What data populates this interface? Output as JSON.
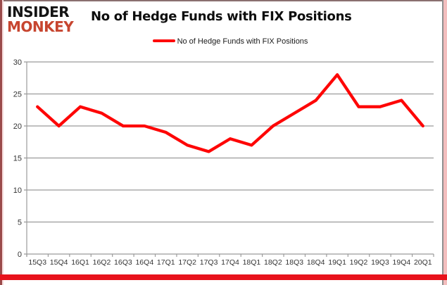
{
  "logo": {
    "line1": "INSIDER",
    "line2": "MONKEY"
  },
  "header": {
    "title": "No of Hedge Funds with FIX Positions"
  },
  "legend": {
    "label": "No of Hedge Funds with FIX Positions"
  },
  "chart_data": {
    "type": "line",
    "title": "No of Hedge Funds with FIX Positions",
    "categories": [
      "15Q3",
      "15Q4",
      "16Q1",
      "16Q2",
      "16Q3",
      "16Q4",
      "17Q1",
      "17Q2",
      "17Q3",
      "17Q4",
      "18Q1",
      "18Q2",
      "18Q3",
      "18Q4",
      "19Q1",
      "19Q2",
      "19Q3",
      "19Q4",
      "20Q1"
    ],
    "series": [
      {
        "name": "No of Hedge Funds with FIX Positions",
        "color": "#fe0606",
        "values": [
          23,
          20,
          23,
          22,
          20,
          20,
          19,
          17,
          16,
          18,
          17,
          20,
          22,
          24,
          28,
          23,
          23,
          24,
          20
        ]
      }
    ],
    "xlabel": "",
    "ylabel": "",
    "ylim": [
      0,
      30
    ],
    "ytick_interval": 5,
    "grid": true,
    "legend_position": "top"
  },
  "colors": {
    "line_red": "#fe0606",
    "grid_gray": "#9b9b9b",
    "axis_text": "#333333",
    "bottom_bar_red": "#e8121b",
    "logo_accent": "#c7452f"
  }
}
